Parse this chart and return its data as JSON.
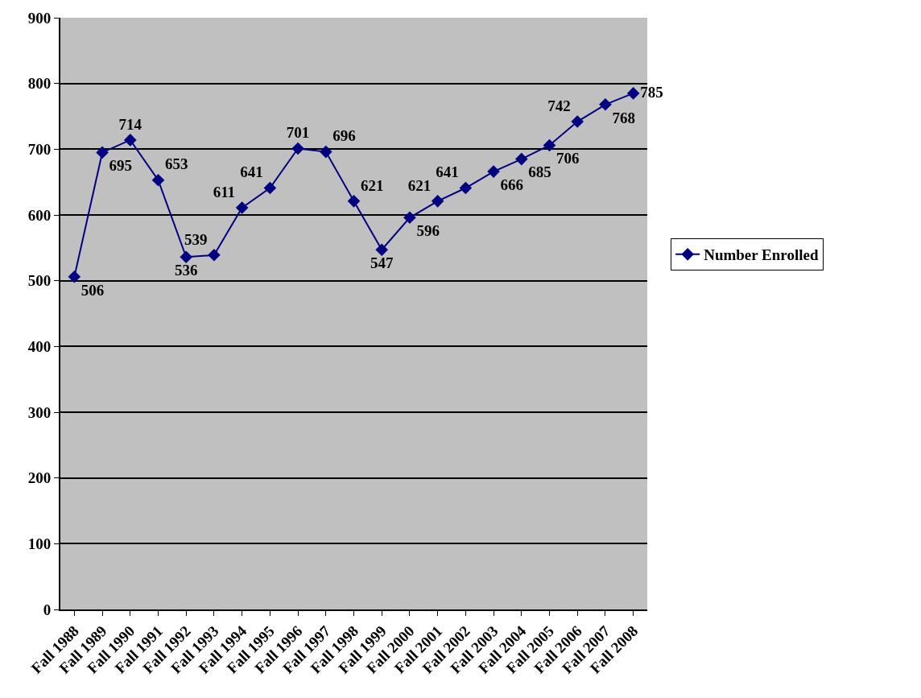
{
  "chart_data": {
    "type": "line",
    "categories": [
      "Fall 1988",
      "Fall 1989",
      "Fall 1990",
      "Fall 1991",
      "Fall 1992",
      "Fall 1993",
      "Fall 1994",
      "Fall 1995",
      "Fall 1996",
      "Fall 1997",
      "Fall 1998",
      "Fall 1999",
      "Fall 2000",
      "Fall 2001",
      "Fall 2002",
      "Fall 2003",
      "Fall 2004",
      "Fall 2005",
      "Fall 2006",
      "Fall 2007",
      "Fall 2008"
    ],
    "series": [
      {
        "name": "Number Enrolled",
        "color": "#000080",
        "values": [
          506,
          695,
          714,
          653,
          536,
          539,
          611,
          641,
          701,
          696,
          621,
          547,
          596,
          621,
          641,
          666,
          685,
          706,
          742,
          768,
          785
        ]
      }
    ],
    "ylim": [
      0,
      900
    ],
    "yticks": [
      0,
      100,
      200,
      300,
      400,
      500,
      600,
      700,
      800,
      900
    ],
    "grid": "y",
    "legend": "right",
    "marker": "diamond",
    "line_style": "solid",
    "data_labels": true
  }
}
